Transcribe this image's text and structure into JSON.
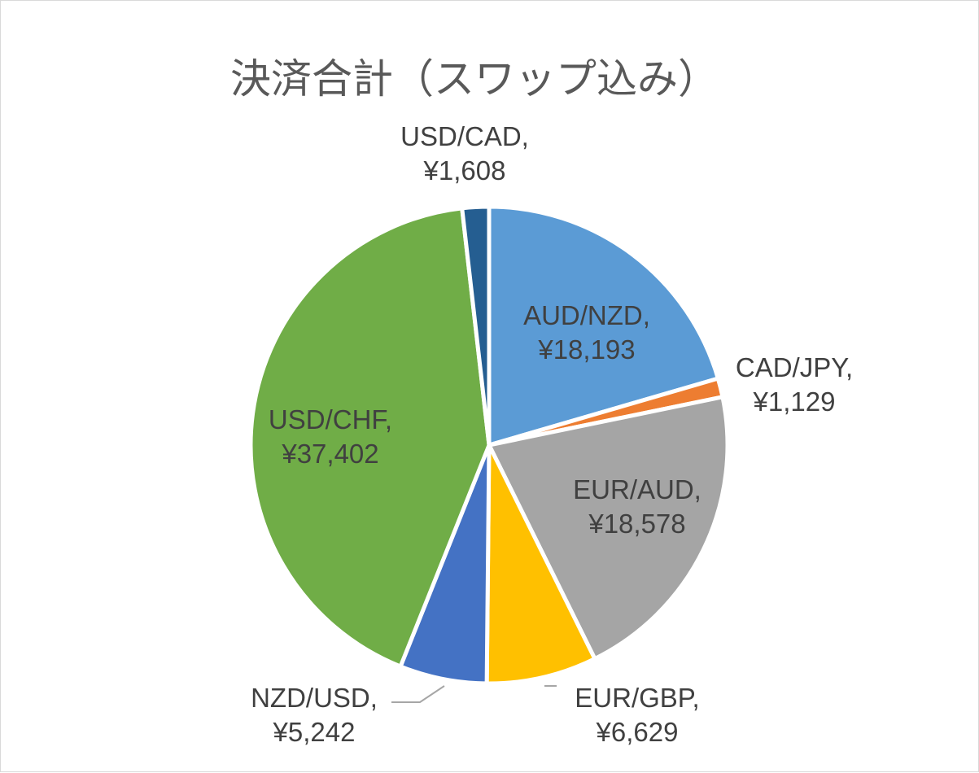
{
  "chart_data": {
    "type": "pie",
    "title": "決済合計（スワップ込み）",
    "slices": [
      {
        "name": "AUD/NZD",
        "value": 18193,
        "value_label": "¥18,193",
        "color": "#5b9bd5"
      },
      {
        "name": "CAD/JPY",
        "value": 1129,
        "value_label": "¥1,129",
        "color": "#ed7d31"
      },
      {
        "name": "EUR/AUD",
        "value": 18578,
        "value_label": "¥18,578",
        "color": "#a5a5a5"
      },
      {
        "name": "EUR/GBP",
        "value": 6629,
        "value_label": "¥6,629",
        "color": "#ffc000"
      },
      {
        "name": "NZD/USD",
        "value": 5242,
        "value_label": "¥5,242",
        "color": "#4472c4"
      },
      {
        "name": "USD/CHF",
        "value": 37402,
        "value_label": "¥37,402",
        "color": "#70ad47"
      },
      {
        "name": "USD/CAD",
        "value": 1608,
        "value_label": "¥1,608",
        "color": "#255e91"
      }
    ],
    "legend": "none",
    "data_labels": "category-and-value"
  }
}
